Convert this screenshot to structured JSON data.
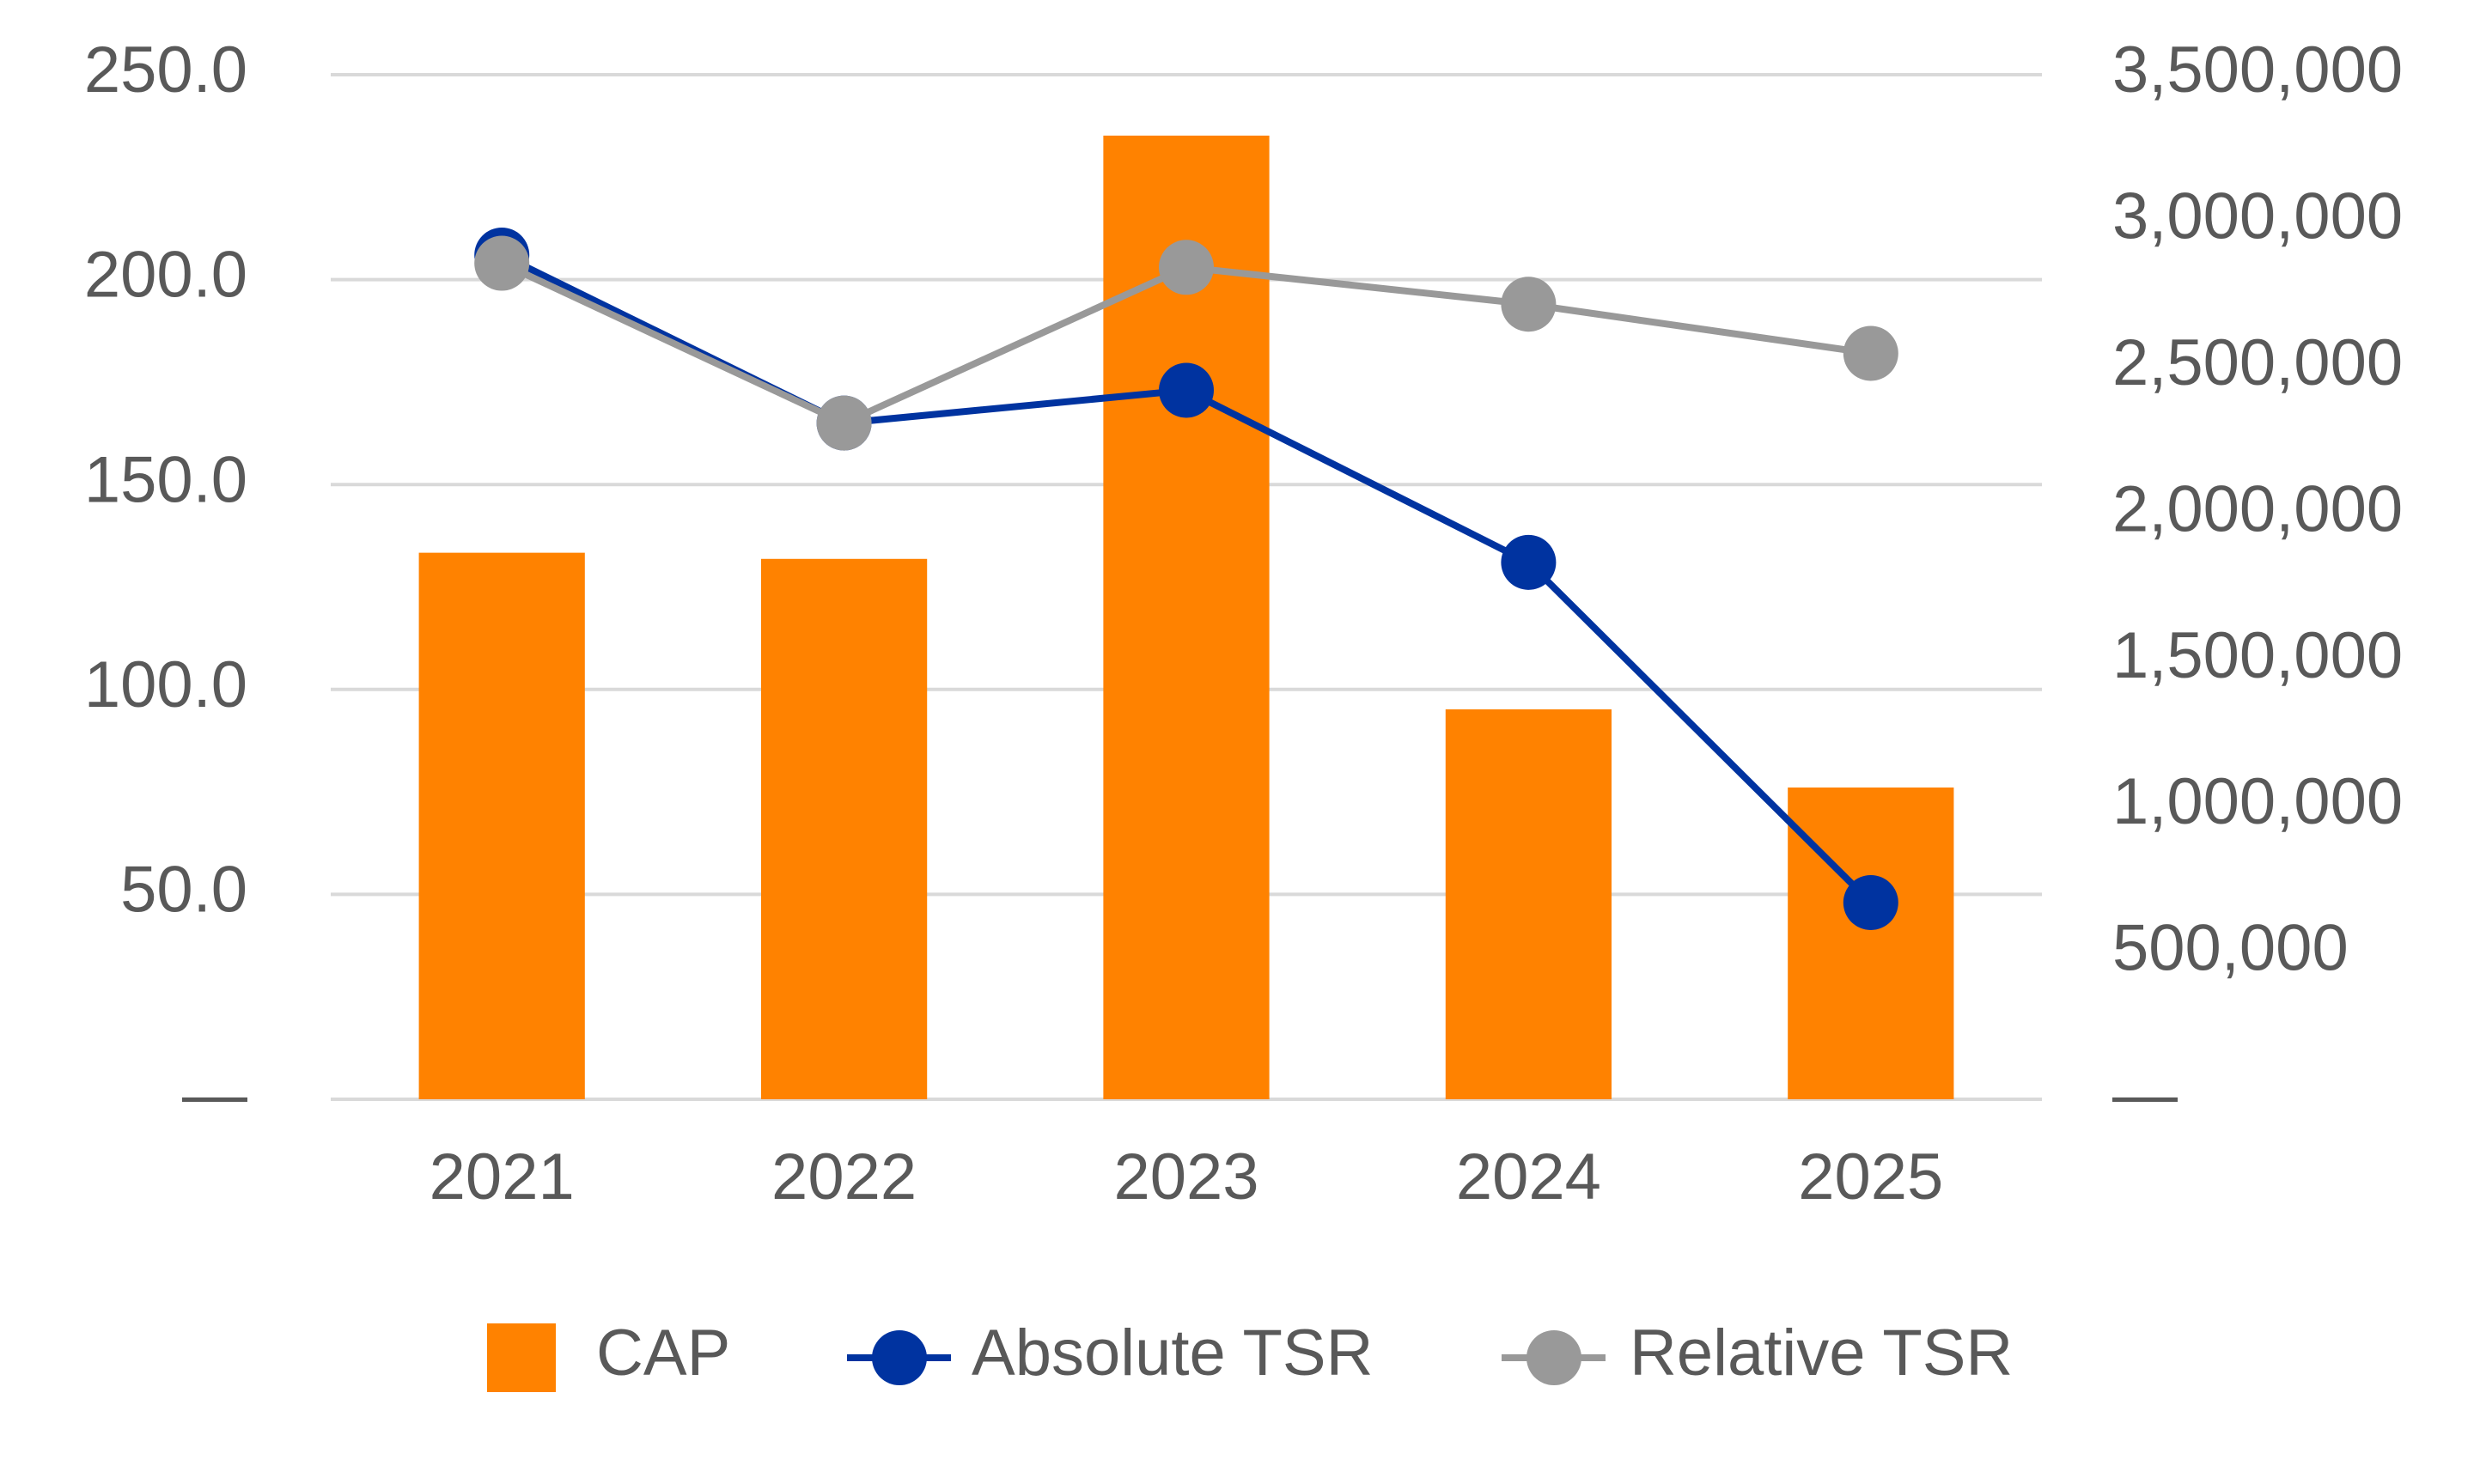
{
  "chart_data": {
    "type": "bar",
    "categories": [
      "2021",
      "2022",
      "2023",
      "2024",
      "2025"
    ],
    "series": [
      {
        "name": "CAP",
        "type": "bar",
        "axis": "y2",
        "color": "#ff8200",
        "values": [
          1867000,
          1846000,
          3292000,
          1332000,
          1065000
        ]
      },
      {
        "name": "Absolute TSR",
        "type": "line",
        "axis": "y",
        "color": "#0033a0",
        "values": [
          206,
          165,
          173,
          131,
          48
        ]
      },
      {
        "name": "Relative TSR",
        "type": "line",
        "axis": "y",
        "color": "#999999",
        "values": [
          204,
          165,
          203,
          194,
          182
        ]
      }
    ],
    "ylim": [
      0,
      250
    ],
    "yticks": [
      {
        "value": 0,
        "label": "—"
      },
      {
        "value": 50,
        "label": "50.0"
      },
      {
        "value": 100,
        "label": "100.0"
      },
      {
        "value": 150,
        "label": "150.0"
      },
      {
        "value": 200,
        "label": "200.0"
      },
      {
        "value": 250,
        "label": "250.0"
      }
    ],
    "y2lim": [
      0,
      3500000
    ],
    "y2ticks": [
      {
        "value": 0,
        "label": "—"
      },
      {
        "value": 500000,
        "label": "500,000"
      },
      {
        "value": 1000000,
        "label": "1,000,000"
      },
      {
        "value": 1500000,
        "label": "1,500,000"
      },
      {
        "value": 2000000,
        "label": "2,000,000"
      },
      {
        "value": 2500000,
        "label": "2,500,000"
      },
      {
        "value": 3000000,
        "label": "3,000,000"
      },
      {
        "value": 3500000,
        "label": "3,500,000"
      }
    ],
    "grid": true,
    "legend": "bottom"
  }
}
